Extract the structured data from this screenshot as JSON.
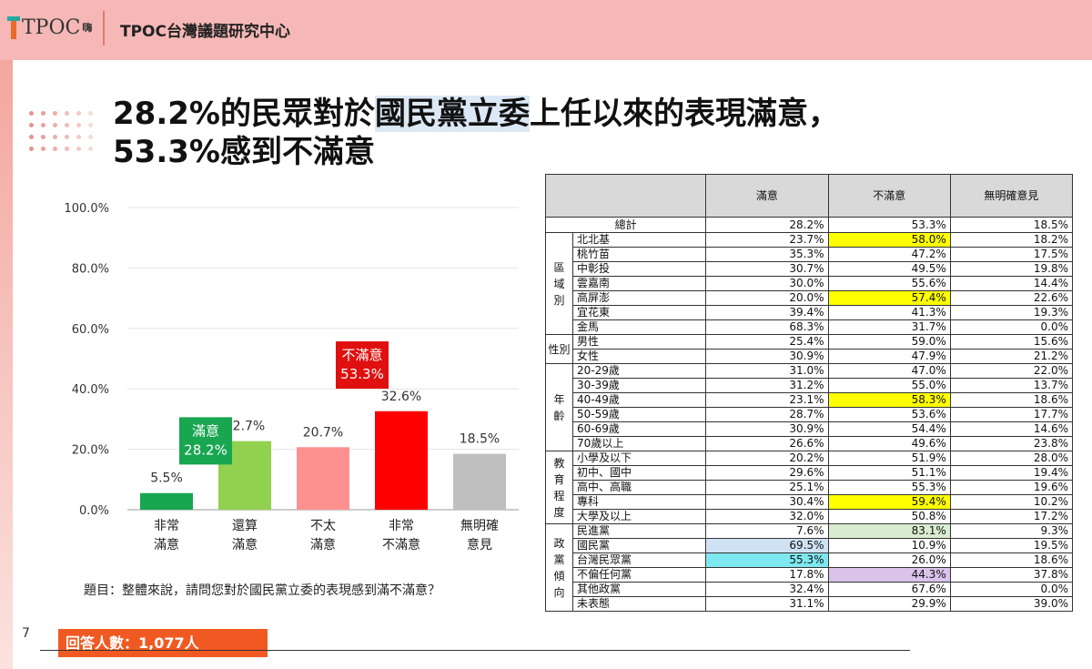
{
  "header": {
    "logo_text": "TPOC",
    "logo_sub": "嗨",
    "title": "TPOC台灣議題研究中心"
  },
  "headline": {
    "line1_pre": "28.2%的民眾對於",
    "line1_hl": "國民黨立委",
    "line1_post": "上任以來的表現滿意，",
    "line2": "53.3%感到不滿意"
  },
  "chart_data": {
    "type": "bar",
    "categories": [
      [
        "非常",
        "滿意"
      ],
      [
        "還算",
        "滿意"
      ],
      [
        "不太",
        "滿意"
      ],
      [
        "非常",
        "不滿意"
      ],
      [
        "無明確",
        "意見"
      ]
    ],
    "values": [
      5.5,
      22.7,
      20.7,
      32.6,
      18.5
    ],
    "value_labels": [
      "5.5%",
      "22.7%",
      "20.7%",
      "32.6%",
      "18.5%"
    ],
    "colors": [
      "#18a650",
      "#92d050",
      "#ff9090",
      "#ff0000",
      "#bfbfbf"
    ],
    "yticks": [
      "0.0%",
      "20.0%",
      "40.0%",
      "60.0%",
      "80.0%",
      "100.0%"
    ],
    "ylim": [
      0,
      100
    ],
    "grid": true,
    "annotations": [
      {
        "text": [
          "滿意",
          "28.2%"
        ],
        "color": "#18a650",
        "value": 28.2
      },
      {
        "text": [
          "不滿意",
          "53.3%"
        ],
        "color": "#e01010",
        "value": 53.3
      }
    ]
  },
  "question": "題目：整體來說，請問您對於國民黨立委的表現感到滿不滿意？",
  "page_number": "7",
  "respondents": "回答人數：1,077人",
  "table": {
    "columns": [
      "滿意",
      "不滿意",
      "無明確意見"
    ],
    "total": {
      "label": "總計",
      "values": [
        "28.2%",
        "53.3%",
        "18.5%"
      ]
    },
    "groups": [
      {
        "name": "區域別",
        "rows": [
          {
            "label": "北北基",
            "values": [
              "23.7%",
              "58.0%",
              "18.2%"
            ],
            "hl": [
              null,
              "y",
              null
            ]
          },
          {
            "label": "桃竹苗",
            "values": [
              "35.3%",
              "47.2%",
              "17.5%"
            ],
            "hl": [
              null,
              null,
              null
            ]
          },
          {
            "label": "中彰投",
            "values": [
              "30.7%",
              "49.5%",
              "19.8%"
            ],
            "hl": [
              null,
              null,
              null
            ]
          },
          {
            "label": "雲嘉南",
            "values": [
              "30.0%",
              "55.6%",
              "14.4%"
            ],
            "hl": [
              null,
              null,
              null
            ]
          },
          {
            "label": "高屏澎",
            "values": [
              "20.0%",
              "57.4%",
              "22.6%"
            ],
            "hl": [
              null,
              "y",
              null
            ]
          },
          {
            "label": "宜花東",
            "values": [
              "39.4%",
              "41.3%",
              "19.3%"
            ],
            "hl": [
              null,
              null,
              null
            ]
          },
          {
            "label": "金馬",
            "values": [
              "68.3%",
              "31.7%",
              "0.0%"
            ],
            "hl": [
              null,
              null,
              null
            ]
          }
        ]
      },
      {
        "name": "性別",
        "rows": [
          {
            "label": "男性",
            "values": [
              "25.4%",
              "59.0%",
              "15.6%"
            ],
            "hl": [
              null,
              null,
              null
            ]
          },
          {
            "label": "女性",
            "values": [
              "30.9%",
              "47.9%",
              "21.2%"
            ],
            "hl": [
              null,
              null,
              null
            ]
          }
        ]
      },
      {
        "name": "年齡",
        "rows": [
          {
            "label": "20-29歲",
            "values": [
              "31.0%",
              "47.0%",
              "22.0%"
            ],
            "hl": [
              null,
              null,
              null
            ]
          },
          {
            "label": "30-39歲",
            "values": [
              "31.2%",
              "55.0%",
              "13.7%"
            ],
            "hl": [
              null,
              null,
              null
            ]
          },
          {
            "label": "40-49歲",
            "values": [
              "23.1%",
              "58.3%",
              "18.6%"
            ],
            "hl": [
              null,
              "y",
              null
            ]
          },
          {
            "label": "50-59歲",
            "values": [
              "28.7%",
              "53.6%",
              "17.7%"
            ],
            "hl": [
              null,
              null,
              null
            ]
          },
          {
            "label": "60-69歲",
            "values": [
              "30.9%",
              "54.4%",
              "14.6%"
            ],
            "hl": [
              null,
              null,
              null
            ]
          },
          {
            "label": "70歲以上",
            "values": [
              "26.6%",
              "49.6%",
              "23.8%"
            ],
            "hl": [
              null,
              null,
              null
            ]
          }
        ]
      },
      {
        "name": "教育程度",
        "rows": [
          {
            "label": "小學及以下",
            "values": [
              "20.2%",
              "51.9%",
              "28.0%"
            ],
            "hl": [
              null,
              null,
              null
            ]
          },
          {
            "label": "初中、國中",
            "values": [
              "29.6%",
              "51.1%",
              "19.4%"
            ],
            "hl": [
              null,
              null,
              null
            ]
          },
          {
            "label": "高中、高職",
            "values": [
              "25.1%",
              "55.3%",
              "19.6%"
            ],
            "hl": [
              null,
              null,
              null
            ]
          },
          {
            "label": "專科",
            "values": [
              "30.4%",
              "59.4%",
              "10.2%"
            ],
            "hl": [
              null,
              "y",
              null
            ]
          },
          {
            "label": "大學及以上",
            "values": [
              "32.0%",
              "50.8%",
              "17.2%"
            ],
            "hl": [
              null,
              null,
              null
            ]
          }
        ]
      },
      {
        "name": "政黨傾向",
        "rows": [
          {
            "label": "民進黨",
            "values": [
              "7.6%",
              "83.1%",
              "9.3%"
            ],
            "hl": [
              null,
              "g",
              null
            ]
          },
          {
            "label": "國民黨",
            "values": [
              "69.5%",
              "10.9%",
              "19.5%"
            ],
            "hl": [
              "b",
              null,
              null
            ]
          },
          {
            "label": "台灣民眾黨",
            "values": [
              "55.3%",
              "26.0%",
              "18.6%"
            ],
            "hl": [
              "c",
              null,
              null
            ]
          },
          {
            "label": "不偏任何黨",
            "values": [
              "17.8%",
              "44.3%",
              "37.8%"
            ],
            "hl": [
              null,
              "p",
              null
            ]
          },
          {
            "label": "其他政黨",
            "values": [
              "32.4%",
              "67.6%",
              "0.0%"
            ],
            "hl": [
              null,
              null,
              null
            ]
          },
          {
            "label": "未表態",
            "values": [
              "31.1%",
              "29.9%",
              "39.0%"
            ],
            "hl": [
              null,
              null,
              null
            ]
          }
        ]
      }
    ]
  }
}
